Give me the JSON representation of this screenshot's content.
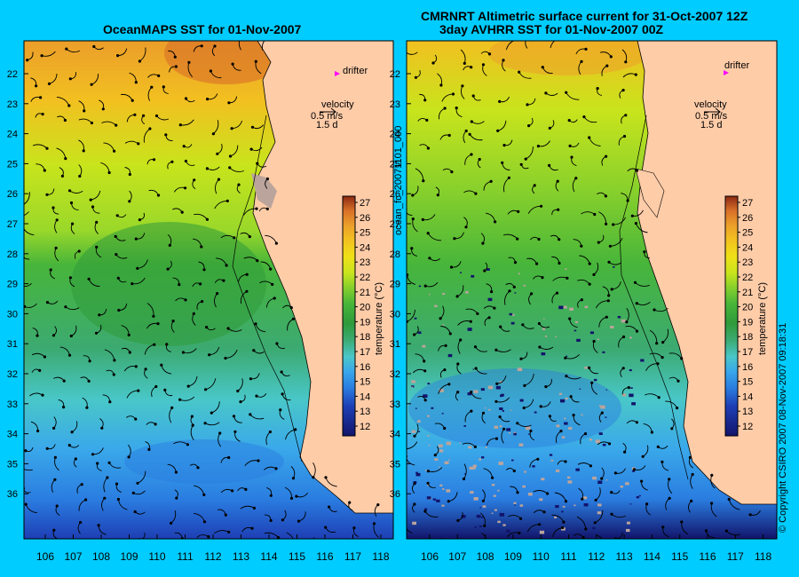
{
  "left_panel": {
    "title": "OceanMAPS SST for 01-Nov-2007",
    "drifter_label": "drifter",
    "velocity_label": "velocity",
    "velocity_scale": "0.5 m/s",
    "velocity_days": "1.5 d",
    "colorbar_label": "temperature (°C)"
  },
  "right_panel": {
    "title_line1": "CMRNRT Altimetric surface current for 31-Oct-2007 12Z",
    "title_line2": "3day AVHRR SST for 01-Nov-2007 00Z",
    "drifter_label": "drifter",
    "velocity_label": "velocity",
    "velocity_scale": "0.5 m/s",
    "velocity_days": "1.5 d",
    "colorbar_label": "temperature (°C)"
  },
  "side_labels": {
    "left_vertical": "ocean_fc_20071101_000",
    "right_vertical": "© Copyright CSIRO 2007    08-Nov-2007 09:18:31"
  },
  "axes": {
    "lat_ticks": [
      "22",
      "23",
      "24",
      "25",
      "26",
      "27",
      "28",
      "29",
      "30",
      "31",
      "32",
      "33",
      "34",
      "35",
      "36"
    ],
    "lon_ticks": [
      "106",
      "107",
      "108",
      "109",
      "110",
      "111",
      "112",
      "113",
      "114",
      "115",
      "116",
      "117",
      "118"
    ],
    "colorbar_ticks": [
      "12",
      "13",
      "14",
      "15",
      "16",
      "17",
      "18",
      "19",
      "20",
      "21",
      "22",
      "23",
      "24",
      "25",
      "26",
      "27"
    ]
  },
  "colors": {
    "background": "#00ccff",
    "land": "#ffcca8",
    "bad_data": "#bba49c",
    "drifter": "#ff00ff",
    "colorbar_stops": [
      "#12146b",
      "#1e3fb5",
      "#2a7de0",
      "#3aa8ea",
      "#49c7c8",
      "#3caa72",
      "#2f9a3a",
      "#47b53a",
      "#88d02c",
      "#c8e41c",
      "#f0e018",
      "#f2c020",
      "#eb9e2a",
      "#d86f28",
      "#b84a1e",
      "#8a2812"
    ]
  }
}
